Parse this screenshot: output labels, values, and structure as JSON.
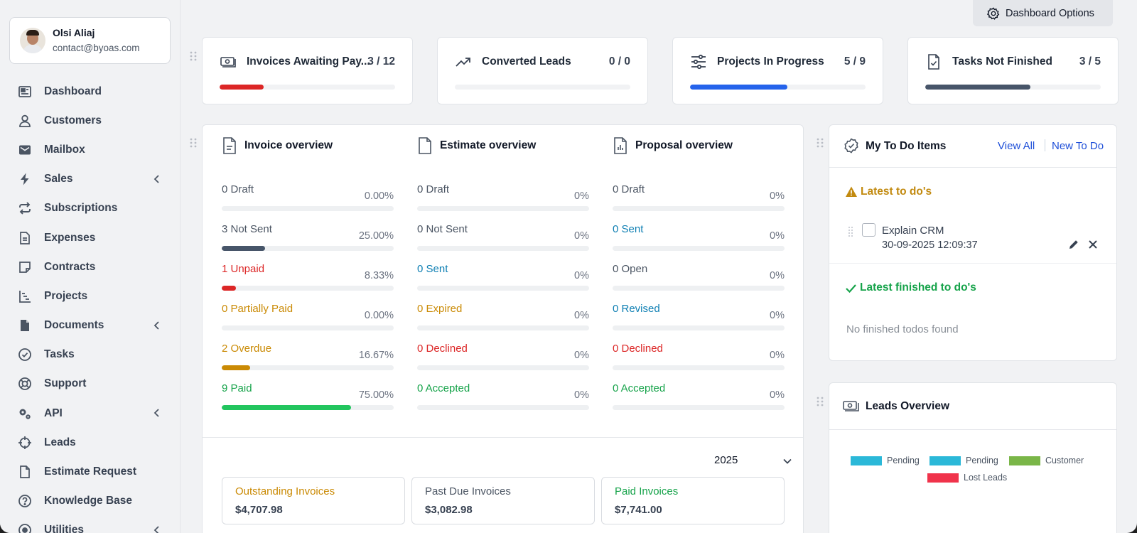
{
  "profile": {
    "name": "Olsi Aliaj",
    "email": "contact@byoas.com"
  },
  "nav": [
    {
      "label": "Dashboard",
      "icon": "dashboard-icon",
      "chevron": false
    },
    {
      "label": "Customers",
      "icon": "user-icon",
      "chevron": false
    },
    {
      "label": "Mailbox",
      "icon": "envelope-icon",
      "chevron": false
    },
    {
      "label": "Sales",
      "icon": "bolt-icon",
      "chevron": true
    },
    {
      "label": "Subscriptions",
      "icon": "repeat-icon",
      "chevron": false
    },
    {
      "label": "Expenses",
      "icon": "file-text-icon",
      "chevron": false
    },
    {
      "label": "Contracts",
      "icon": "sticky-note-icon",
      "chevron": false
    },
    {
      "label": "Projects",
      "icon": "chart-gantt-icon",
      "chevron": false
    },
    {
      "label": "Documents",
      "icon": "file-icon",
      "chevron": true
    },
    {
      "label": "Tasks",
      "icon": "check-circle-icon",
      "chevron": false
    },
    {
      "label": "Support",
      "icon": "life-ring-icon",
      "chevron": false
    },
    {
      "label": "API",
      "icon": "cogs-icon",
      "chevron": true
    },
    {
      "label": "Leads",
      "icon": "crosshair-icon",
      "chevron": false
    },
    {
      "label": "Estimate Request",
      "icon": "file-outline-icon",
      "chevron": false
    },
    {
      "label": "Knowledge Base",
      "icon": "question-circle-icon",
      "chevron": false
    },
    {
      "label": "Utilities",
      "icon": "circle-dot-icon",
      "chevron": true
    }
  ],
  "topbar": {
    "dashboard_options": "Dashboard Options"
  },
  "stats": [
    {
      "title": "Invoices Awaiting Pay...",
      "value": "3 / 12",
      "progress": 0.25,
      "color": "#dc2626",
      "icon": "money-bill-icon"
    },
    {
      "title": "Converted Leads",
      "value": "0 / 0",
      "progress": 0,
      "color": "#2563eb",
      "icon": "trending-up-icon"
    },
    {
      "title": "Projects In Progress",
      "value": "5 / 9",
      "progress": 0.5556,
      "color": "#2563eb",
      "icon": "sliders-icon"
    },
    {
      "title": "Tasks Not Finished",
      "value": "3 / 5",
      "progress": 0.6,
      "color": "#475569",
      "icon": "file-check-icon"
    }
  ],
  "overview": {
    "columns": [
      {
        "title": "Invoice overview",
        "icon": "invoice-file-icon",
        "rows": [
          {
            "label": "0 Draft",
            "percent": "0.00%",
            "value": 0,
            "color": "#4b5563",
            "bar": "#4b5563"
          },
          {
            "label": "3 Not Sent",
            "percent": "25.00%",
            "value": 0.25,
            "color": "#4b5563",
            "bar": "#475569"
          },
          {
            "label": "1 Unpaid",
            "percent": "8.33%",
            "value": 0.0833,
            "color": "#dc2626",
            "bar": "#dc2626"
          },
          {
            "label": "0 Partially Paid",
            "percent": "0.00%",
            "value": 0,
            "color": "#ca8a04",
            "bar": "#ca8a04"
          },
          {
            "label": "2 Overdue",
            "percent": "16.67%",
            "value": 0.1667,
            "color": "#ca8a04",
            "bar": "#ca8a04"
          },
          {
            "label": "9 Paid",
            "percent": "75.00%",
            "value": 0.75,
            "color": "#16a34a",
            "bar": "#22c55e"
          }
        ]
      },
      {
        "title": "Estimate overview",
        "icon": "estimate-file-icon",
        "rows": [
          {
            "label": "0 Draft",
            "percent": "0%",
            "value": 0,
            "color": "#4b5563",
            "bar": "#4b5563"
          },
          {
            "label": "0 Not Sent",
            "percent": "0%",
            "value": 0,
            "color": "#4b5563",
            "bar": "#4b5563"
          },
          {
            "label": "0 Sent",
            "percent": "0%",
            "value": 0,
            "color": "#0e7fb3",
            "bar": "#0e7fb3"
          },
          {
            "label": "0 Expired",
            "percent": "0%",
            "value": 0,
            "color": "#ca8a04",
            "bar": "#ca8a04"
          },
          {
            "label": "0 Declined",
            "percent": "0%",
            "value": 0,
            "color": "#dc2626",
            "bar": "#dc2626"
          },
          {
            "label": "0 Accepted",
            "percent": "0%",
            "value": 0,
            "color": "#16a34a",
            "bar": "#16a34a"
          }
        ]
      },
      {
        "title": "Proposal overview",
        "icon": "proposal-file-icon",
        "rows": [
          {
            "label": "0 Draft",
            "percent": "0%",
            "value": 0,
            "color": "#4b5563",
            "bar": "#4b5563"
          },
          {
            "label": "0 Sent",
            "percent": "0%",
            "value": 0,
            "color": "#0e7fb3",
            "bar": "#0e7fb3"
          },
          {
            "label": "0 Open",
            "percent": "0%",
            "value": 0,
            "color": "#4b5563",
            "bar": "#4b5563"
          },
          {
            "label": "0 Revised",
            "percent": "0%",
            "value": 0,
            "color": "#0e7fb3",
            "bar": "#0e7fb3"
          },
          {
            "label": "0 Declined",
            "percent": "0%",
            "value": 0,
            "color": "#dc2626",
            "bar": "#dc2626"
          },
          {
            "label": "0 Accepted",
            "percent": "0%",
            "value": 0,
            "color": "#16a34a",
            "bar": "#16a34a"
          }
        ]
      }
    ],
    "year": "2025",
    "boxes": [
      {
        "title": "Outstanding Invoices",
        "value": "$4,707.98",
        "color": "#ca8a04"
      },
      {
        "title": "Past Due Invoices",
        "value": "$3,082.98",
        "color": "#4b5563"
      },
      {
        "title": "Paid Invoices",
        "value": "$7,741.00",
        "color": "#16a34a"
      }
    ]
  },
  "todo": {
    "title": "My To Do Items",
    "view_all": "View All",
    "new_todo": "New To Do",
    "latest": "Latest to do's",
    "item_text": "Explain CRM",
    "item_date": "30-09-2025 12:09:37",
    "finished": "Latest finished to do's",
    "no_finished": "No finished todos found"
  },
  "leads": {
    "title": "Leads Overview",
    "legend": [
      {
        "label": "Pending",
        "color": "#2bb8d8"
      },
      {
        "label": "Pending",
        "color": "#2bb8d8"
      },
      {
        "label": "Customer",
        "color": "#7ab648"
      },
      {
        "label": "Lost Leads",
        "color": "#f0334b"
      }
    ]
  }
}
